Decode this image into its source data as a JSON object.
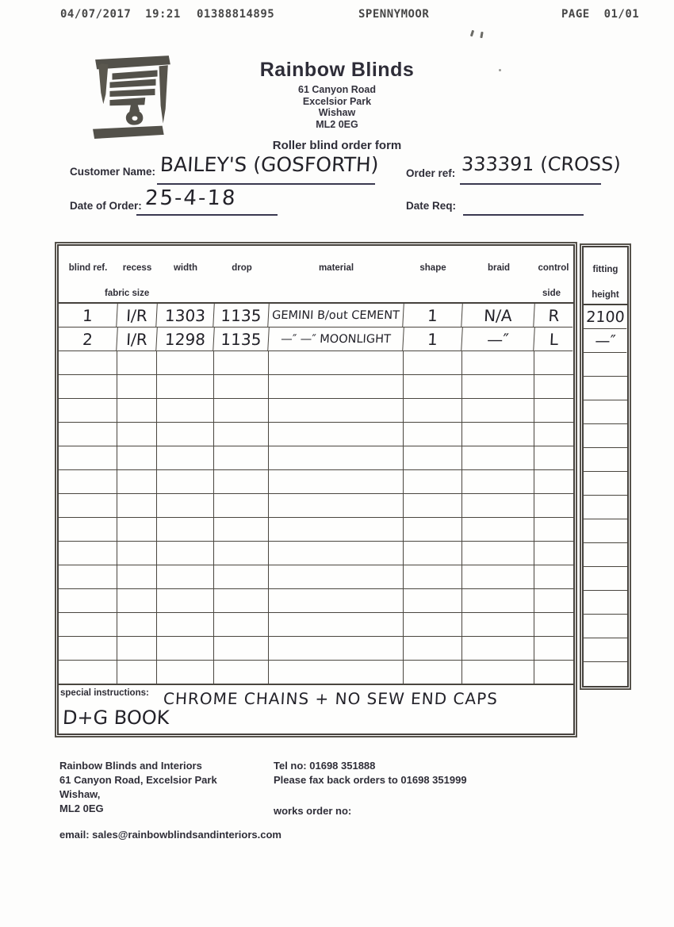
{
  "fax_header": {
    "datetime": "04/07/2017  19:21",
    "fax_number": "01388814895",
    "station": "SPENNYMOOR",
    "page_label": "PAGE  01/01"
  },
  "header": {
    "company": "Rainbow Blinds",
    "address": "61 Canyon Road\nExcelsior Park\nWishaw\nML2 0EG",
    "form_title": "Roller blind order form",
    "logo": "hand-drawn-window-blind-icon"
  },
  "order_fields": {
    "customer_name_label": "Customer Name:",
    "customer_name_value": "BAILEY'S (GOSFORTH)",
    "order_ref_label": "Order ref:",
    "order_ref_value": "333391 (CROSS)",
    "date_of_order_label": "Date of Order:",
    "date_of_order_value": "25-4-18",
    "date_req_label": "Date Req:",
    "date_req_value": ""
  },
  "table": {
    "columns": [
      {
        "label": "blind ref.",
        "sublabel": ""
      },
      {
        "label": "recess",
        "sublabel": "fabric size"
      },
      {
        "label": "width",
        "sublabel": ""
      },
      {
        "label": "drop",
        "sublabel": ""
      },
      {
        "label": "material",
        "sublabel": ""
      },
      {
        "label": "shape",
        "sublabel": ""
      },
      {
        "label": "braid",
        "sublabel": ""
      },
      {
        "label": "control",
        "sublabel": "side"
      },
      {
        "label": "fitting",
        "sublabel": "height"
      }
    ],
    "rows": [
      {
        "blind_ref": "1",
        "recess": "I/R",
        "width": "1303",
        "drop": "1135",
        "material": "GEMINI B/out CEMENT",
        "shape": "1",
        "braid": "N/A",
        "control": "R",
        "fitting": "2100"
      },
      {
        "blind_ref": "2",
        "recess": "I/R",
        "width": "1298",
        "drop": "1135",
        "material": "—″ —″ MOONLIGHT",
        "shape": "1",
        "braid": "—″",
        "control": "L",
        "fitting": "—″"
      }
    ],
    "empty_rows": 14,
    "special_instructions_label": "special instructions:",
    "special_instructions_line1": "CHROME CHAINS + NO SEW END CAPS",
    "special_instructions_line2": "D+G BOOK"
  },
  "footer": {
    "address_block": "Rainbow Blinds and Interiors\n61 Canyon Road, Excelsior Park\nWishaw,\nML2 0EG",
    "tel_block": "Tel no: 01698 351888\nPlease fax back orders to 01698 351999",
    "works_order_label": "works order no:",
    "email_line": "email: sales@rainbowblindsandinteriors.com"
  },
  "colors": {
    "printed_ink": "#2e2d38",
    "handwriting_ink": "#232229",
    "table_line": "#4a463f",
    "logo_ink": "#53514a"
  }
}
